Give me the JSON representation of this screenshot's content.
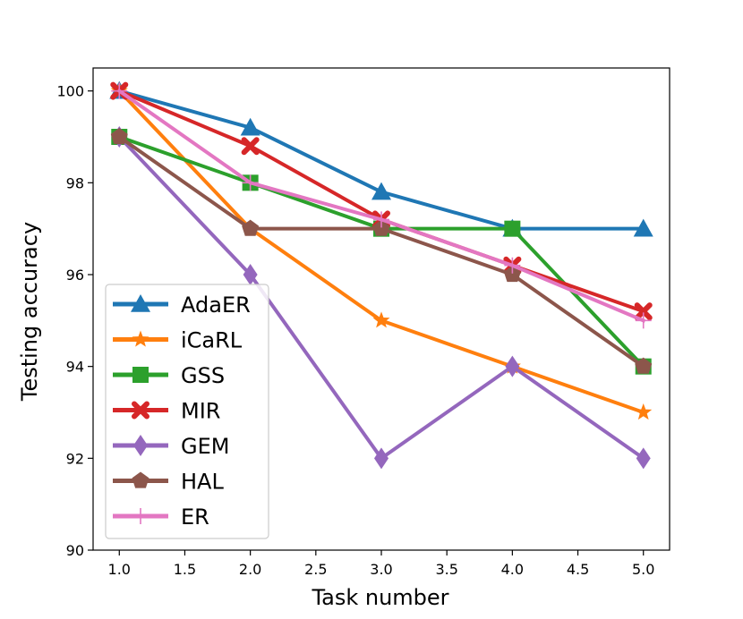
{
  "chart_data": {
    "type": "line",
    "title": "",
    "xlabel": "Task number",
    "ylabel": "Testing accuracy",
    "x": [
      1.0,
      2.0,
      3.0,
      4.0,
      5.0
    ],
    "xlim": [
      0.8,
      5.2
    ],
    "ylim": [
      90,
      100.5
    ],
    "xticks": [
      1.0,
      1.5,
      2.0,
      2.5,
      3.0,
      3.5,
      4.0,
      4.5,
      5.0
    ],
    "xtick_labels": [
      "1.0",
      "1.5",
      "2.0",
      "2.5",
      "3.0",
      "3.5",
      "4.0",
      "4.5",
      "5.0"
    ],
    "yticks": [
      90,
      92,
      94,
      96,
      98,
      100
    ],
    "ytick_labels": [
      "90",
      "92",
      "94",
      "96",
      "98",
      "100"
    ],
    "grid": false,
    "legend_position": "bottom-left",
    "series": [
      {
        "name": "AdaER",
        "color": "#1f77b4",
        "marker": "triangle",
        "values": [
          100.0,
          99.2,
          97.8,
          97.0,
          97.0
        ]
      },
      {
        "name": "iCaRL",
        "color": "#ff7f0e",
        "marker": "star",
        "values": [
          100.0,
          97.0,
          95.0,
          94.0,
          93.0
        ]
      },
      {
        "name": "GSS",
        "color": "#2ca02c",
        "marker": "square",
        "values": [
          99.0,
          98.0,
          97.0,
          97.0,
          94.0
        ]
      },
      {
        "name": "MIR",
        "color": "#d62728",
        "marker": "x",
        "values": [
          100.0,
          98.8,
          97.2,
          96.2,
          95.2
        ]
      },
      {
        "name": "GEM",
        "color": "#9467bd",
        "marker": "diamond",
        "values": [
          99.0,
          96.0,
          92.0,
          94.0,
          92.0
        ]
      },
      {
        "name": "HAL",
        "color": "#8c564b",
        "marker": "pentagon",
        "values": [
          99.0,
          97.0,
          97.0,
          96.0,
          94.0
        ]
      },
      {
        "name": "ER",
        "color": "#e377c2",
        "marker": "plus",
        "values": [
          100.0,
          98.0,
          97.2,
          96.2,
          95.0
        ]
      }
    ]
  }
}
